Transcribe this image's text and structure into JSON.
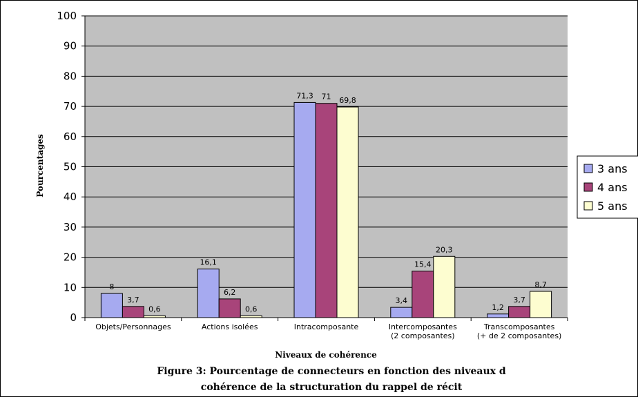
{
  "chart_data": {
    "type": "bar",
    "title": "",
    "caption_line1": "Figure 3: Pourcentage de connecteurs en fonction des niveaux d",
    "caption_line2": "cohérence de la structuration du rappel de récit",
    "xlabel": "Niveaux de cohérence",
    "ylabel": "Pourcentages",
    "ylim": [
      0,
      100
    ],
    "yticks": [
      "0",
      "10",
      "20",
      "30",
      "40",
      "50",
      "60",
      "70",
      "80",
      "90",
      "100"
    ],
    "grid": true,
    "legend_position": "right",
    "categories": [
      [
        "Objets/Personnages"
      ],
      [
        "Actions isolées"
      ],
      [
        "Intracomposante"
      ],
      [
        "Intercomposantes",
        "(2 composantes)"
      ],
      [
        "Transcomposantes",
        "(+ de 2 composantes)"
      ]
    ],
    "series": [
      {
        "name": "3 ans",
        "color": "#a6aaf0",
        "values": [
          8,
          16.1,
          71.3,
          3.4,
          1.2
        ],
        "labels": [
          "8",
          "16,1",
          "71,3",
          "3,4",
          "1,2"
        ]
      },
      {
        "name": "4 ans",
        "color": "#a8447a",
        "values": [
          3.7,
          6.2,
          71,
          15.4,
          3.7
        ],
        "labels": [
          "3,7",
          "6,2",
          "71",
          "15,4",
          "3,7"
        ]
      },
      {
        "name": "5 ans",
        "color": "#fdfdd0",
        "values": [
          0.6,
          0.6,
          69.8,
          20.3,
          8.7
        ],
        "labels": [
          "0,6",
          "0,6",
          "69,8",
          "20,3",
          "8,7"
        ]
      }
    ],
    "plot_background": "#c0c0c0"
  }
}
